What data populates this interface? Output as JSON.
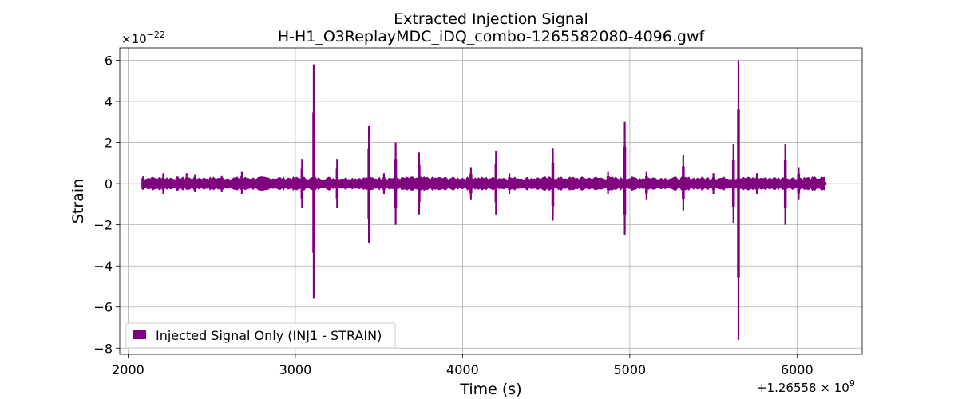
{
  "chart_data": {
    "type": "line",
    "title": "Extracted Injection Signal",
    "subtitle": "H-H1_O3ReplayMDC_iDQ_combo-1265582080-4096.gwf",
    "xlabel": "Time (s)",
    "ylabel": "Strain",
    "x_offset_label": "+1.26558",
    "x_offset_exp": "9",
    "y_scale_prefix": "×10",
    "y_scale_exp": "−22",
    "xlim": [
      1950,
      6390
    ],
    "ylim": [
      -8.3,
      6.6
    ],
    "x_ticks": [
      2000,
      3000,
      4000,
      5000,
      6000
    ],
    "x_tick_labels": [
      "2000",
      "3000",
      "4000",
      "5000",
      "6000"
    ],
    "y_ticks": [
      6,
      4,
      2,
      0,
      -2,
      -4,
      -6,
      -8
    ],
    "y_tick_labels": [
      "6",
      "4",
      "2",
      "0",
      "−2",
      "−4",
      "−6",
      "−8"
    ],
    "grid": true,
    "legend_position": "lower-left",
    "series": [
      {
        "name": "Injected Signal Only (INJ1 - STRAIN)",
        "color": "#800080",
        "data_start": 2080,
        "data_end": 6176,
        "band_amplitude": 0.35,
        "bursts": [
          {
            "x": 2090,
            "pos": 0.35,
            "neg": -0.3
          },
          {
            "x": 2140,
            "pos": 0.3,
            "neg": -0.25
          },
          {
            "x": 2210,
            "pos": 0.5,
            "neg": -0.5
          },
          {
            "x": 2350,
            "pos": 0.5,
            "neg": -0.3
          },
          {
            "x": 2400,
            "pos": 0.45,
            "neg": -0.4
          },
          {
            "x": 2560,
            "pos": 0.4,
            "neg": -0.4
          },
          {
            "x": 2680,
            "pos": 0.6,
            "neg": -0.5
          },
          {
            "x": 3040,
            "pos": 1.2,
            "neg": -1.2
          },
          {
            "x": 3110,
            "pos": 5.8,
            "neg": -5.6
          },
          {
            "x": 3250,
            "pos": 1.2,
            "neg": -1.2
          },
          {
            "x": 3440,
            "pos": 2.8,
            "neg": -2.9
          },
          {
            "x": 3530,
            "pos": 0.5,
            "neg": -0.5
          },
          {
            "x": 3600,
            "pos": 2.0,
            "neg": -2.0
          },
          {
            "x": 3740,
            "pos": 1.5,
            "neg": -1.5
          },
          {
            "x": 4050,
            "pos": 0.8,
            "neg": -0.8
          },
          {
            "x": 4200,
            "pos": 1.6,
            "neg": -1.5
          },
          {
            "x": 4280,
            "pos": 0.5,
            "neg": -0.5
          },
          {
            "x": 4540,
            "pos": 1.7,
            "neg": -1.8
          },
          {
            "x": 4870,
            "pos": 0.6,
            "neg": -0.5
          },
          {
            "x": 4970,
            "pos": 3.0,
            "neg": -2.5
          },
          {
            "x": 5100,
            "pos": 0.6,
            "neg": -0.8
          },
          {
            "x": 5320,
            "pos": 1.4,
            "neg": -1.3
          },
          {
            "x": 5500,
            "pos": 0.5,
            "neg": -0.5
          },
          {
            "x": 5620,
            "pos": 1.9,
            "neg": -1.9
          },
          {
            "x": 5650,
            "pos": 6.0,
            "neg": -7.6
          },
          {
            "x": 5760,
            "pos": 0.5,
            "neg": -0.5
          },
          {
            "x": 5930,
            "pos": 1.9,
            "neg": -2.0
          },
          {
            "x": 6010,
            "pos": 0.8,
            "neg": -0.8
          }
        ]
      }
    ]
  }
}
